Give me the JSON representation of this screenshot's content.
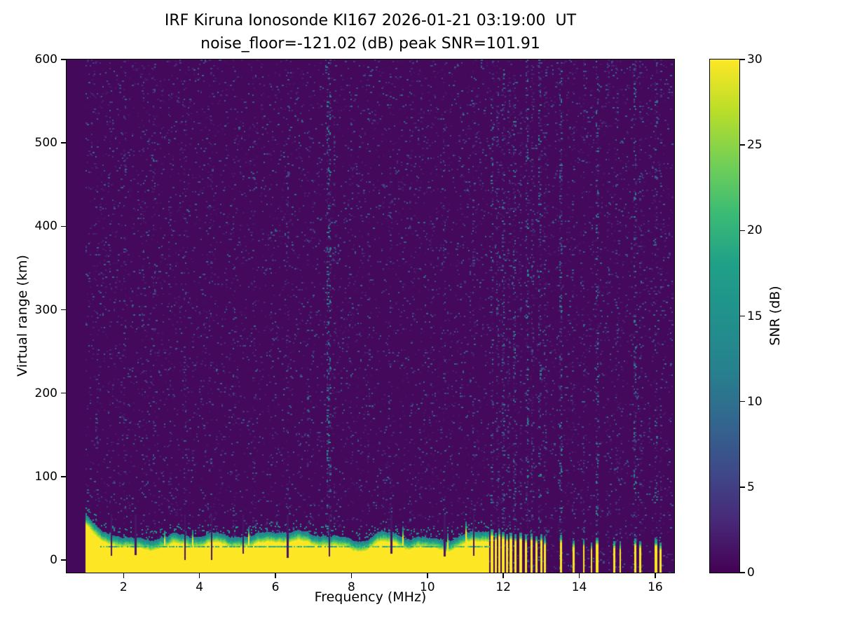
{
  "figure": {
    "title_line1": "IRF Kiruna Ionosonde KI167 2026-01-21 03:19:00  UT",
    "title_line2": "noise_floor=-121.02 (dB) peak SNR=101.91",
    "xlabel": "Frequency (MHz)",
    "ylabel": "Virtual range (km)",
    "colorbar_label": "SNR (dB)"
  },
  "chart_data": {
    "type": "heatmap",
    "title": "IRF Kiruna Ionosonde KI167 2026-01-21 03:19:00  UT",
    "subtitle": "noise_floor=-121.02 (dB) peak SNR=101.91",
    "station": "KI167",
    "timestamp_ut": "2026-01-21 03:19:00",
    "noise_floor_db": -121.02,
    "peak_snr_db": 101.91,
    "xlabel": "Frequency (MHz)",
    "ylabel": "Virtual range (km)",
    "xlim": [
      0.5,
      16.5
    ],
    "ylim": [
      -15,
      600
    ],
    "xticks": [
      2,
      4,
      6,
      8,
      10,
      12,
      14,
      16
    ],
    "yticks": [
      0,
      100,
      200,
      300,
      400,
      500,
      600
    ],
    "grid": false,
    "data_start_mhz": 1.0,
    "data_end_mhz": 16.45,
    "colorbar": {
      "label": "SNR (dB)",
      "vmin": 0,
      "vmax": 30,
      "ticks": [
        0,
        5,
        10,
        15,
        20,
        25,
        30
      ],
      "colormap": "viridis",
      "gradient_stops": [
        [
          0.0,
          "#440154"
        ],
        [
          0.1,
          "#482878"
        ],
        [
          0.2,
          "#3e4a89"
        ],
        [
          0.3,
          "#31688e"
        ],
        [
          0.4,
          "#26828e"
        ],
        [
          0.5,
          "#21918c"
        ],
        [
          0.6,
          "#1fa088"
        ],
        [
          0.7,
          "#3bbb75"
        ],
        [
          0.8,
          "#74d055"
        ],
        [
          0.9,
          "#bade28"
        ],
        [
          1.0,
          "#fde725"
        ]
      ]
    },
    "ground_echo": {
      "description": "saturated near-range echo band at bottom of ionogram",
      "solid_until_mhz": 11.62,
      "base_top_km": 26,
      "left_enhancement_km": 20,
      "inner_dark_line_km": 17,
      "notches": [
        {
          "mhz": 1.68,
          "floor_km": 5
        },
        {
          "mhz": 2.32,
          "floor_km": 6
        },
        {
          "mhz": 3.62,
          "floor_km": 0
        },
        {
          "mhz": 4.32,
          "floor_km": 0
        },
        {
          "mhz": 5.15,
          "floor_km": 8
        },
        {
          "mhz": 6.32,
          "floor_km": 3
        },
        {
          "mhz": 7.42,
          "floor_km": 4
        },
        {
          "mhz": 9.05,
          "floor_km": 8
        },
        {
          "mhz": 10.45,
          "floor_km": 4
        },
        {
          "mhz": 11.22,
          "floor_km": 5
        }
      ],
      "bars": [
        {
          "mhz": 11.7,
          "top_km": 34,
          "w": 0.07
        },
        {
          "mhz": 11.8,
          "top_km": 30,
          "w": 0.06
        },
        {
          "mhz": 11.9,
          "top_km": 33,
          "w": 0.06
        },
        {
          "mhz": 12.0,
          "top_km": 31,
          "w": 0.07
        },
        {
          "mhz": 12.1,
          "top_km": 28,
          "w": 0.05
        },
        {
          "mhz": 12.2,
          "top_km": 30,
          "w": 0.06
        },
        {
          "mhz": 12.32,
          "top_km": 28,
          "w": 0.06
        },
        {
          "mhz": 12.46,
          "top_km": 30,
          "w": 0.07
        },
        {
          "mhz": 12.6,
          "top_km": 27,
          "w": 0.06
        },
        {
          "mhz": 12.74,
          "top_km": 29,
          "w": 0.06
        },
        {
          "mhz": 12.88,
          "top_km": 26,
          "w": 0.06
        },
        {
          "mhz": 13.0,
          "top_km": 28,
          "w": 0.06
        },
        {
          "mhz": 13.1,
          "top_km": 24,
          "w": 0.05
        },
        {
          "mhz": 13.52,
          "top_km": 27,
          "w": 0.07
        },
        {
          "mhz": 13.85,
          "top_km": 21,
          "w": 0.05
        },
        {
          "mhz": 14.12,
          "top_km": 22,
          "w": 0.05
        },
        {
          "mhz": 14.32,
          "top_km": 18,
          "w": 0.04
        },
        {
          "mhz": 14.47,
          "top_km": 24,
          "w": 0.06
        },
        {
          "mhz": 14.92,
          "top_km": 20,
          "w": 0.05
        },
        {
          "mhz": 15.08,
          "top_km": 18,
          "w": 0.04
        },
        {
          "mhz": 15.48,
          "top_km": 23,
          "w": 0.06
        },
        {
          "mhz": 15.6,
          "top_km": 20,
          "w": 0.05
        },
        {
          "mhz": 16.02,
          "top_km": 22,
          "w": 0.06
        },
        {
          "mhz": 16.14,
          "top_km": 18,
          "w": 0.05
        }
      ]
    },
    "noise_stripes": [
      {
        "mhz": 1.3,
        "p": 0.12
      },
      {
        "mhz": 1.62,
        "p": 0.1
      },
      {
        "mhz": 2.04,
        "p": 0.12
      },
      {
        "mhz": 2.5,
        "p": 0.1
      },
      {
        "mhz": 2.82,
        "p": 0.14
      },
      {
        "mhz": 3.22,
        "p": 0.1
      },
      {
        "mhz": 3.62,
        "p": 0.12
      },
      {
        "mhz": 4.28,
        "p": 0.14
      },
      {
        "mhz": 4.9,
        "p": 0.1
      },
      {
        "mhz": 5.42,
        "p": 0.1
      },
      {
        "mhz": 5.9,
        "p": 0.09
      },
      {
        "mhz": 6.3,
        "p": 0.13
      },
      {
        "mhz": 6.85,
        "p": 0.1
      },
      {
        "mhz": 7.4,
        "p": 0.3,
        "boost": 0.25,
        "width": 0.1
      },
      {
        "mhz": 7.55,
        "p": 0.16
      },
      {
        "mhz": 8.0,
        "p": 0.09
      },
      {
        "mhz": 8.45,
        "p": 0.1
      },
      {
        "mhz": 9.02,
        "p": 0.12
      },
      {
        "mhz": 9.55,
        "p": 0.09
      },
      {
        "mhz": 10.1,
        "p": 0.09
      },
      {
        "mhz": 10.45,
        "p": 0.13
      },
      {
        "mhz": 10.9,
        "p": 0.09
      },
      {
        "mhz": 11.22,
        "p": 0.14
      },
      {
        "mhz": 11.7,
        "p": 0.22,
        "boost": 0.15
      },
      {
        "mhz": 11.85,
        "p": 0.18
      },
      {
        "mhz": 12.0,
        "p": 0.22,
        "boost": 0.15
      },
      {
        "mhz": 12.15,
        "p": 0.18
      },
      {
        "mhz": 12.3,
        "p": 0.26,
        "boost": 0.2
      },
      {
        "mhz": 12.46,
        "p": 0.2
      },
      {
        "mhz": 12.62,
        "p": 0.26,
        "boost": 0.2
      },
      {
        "mhz": 12.78,
        "p": 0.2
      },
      {
        "mhz": 12.95,
        "p": 0.26,
        "boost": 0.2
      },
      {
        "mhz": 13.1,
        "p": 0.18
      },
      {
        "mhz": 13.52,
        "p": 0.28,
        "boost": 0.2
      },
      {
        "mhz": 13.85,
        "p": 0.14
      },
      {
        "mhz": 14.12,
        "p": 0.16
      },
      {
        "mhz": 14.47,
        "p": 0.26,
        "boost": 0.2
      },
      {
        "mhz": 14.75,
        "p": 0.12
      },
      {
        "mhz": 15.0,
        "p": 0.14
      },
      {
        "mhz": 15.48,
        "p": 0.26,
        "boost": 0.2
      },
      {
        "mhz": 15.6,
        "p": 0.16
      },
      {
        "mhz": 16.02,
        "p": 0.2,
        "boost": 0.1
      },
      {
        "mhz": 16.15,
        "p": 0.14
      }
    ]
  }
}
